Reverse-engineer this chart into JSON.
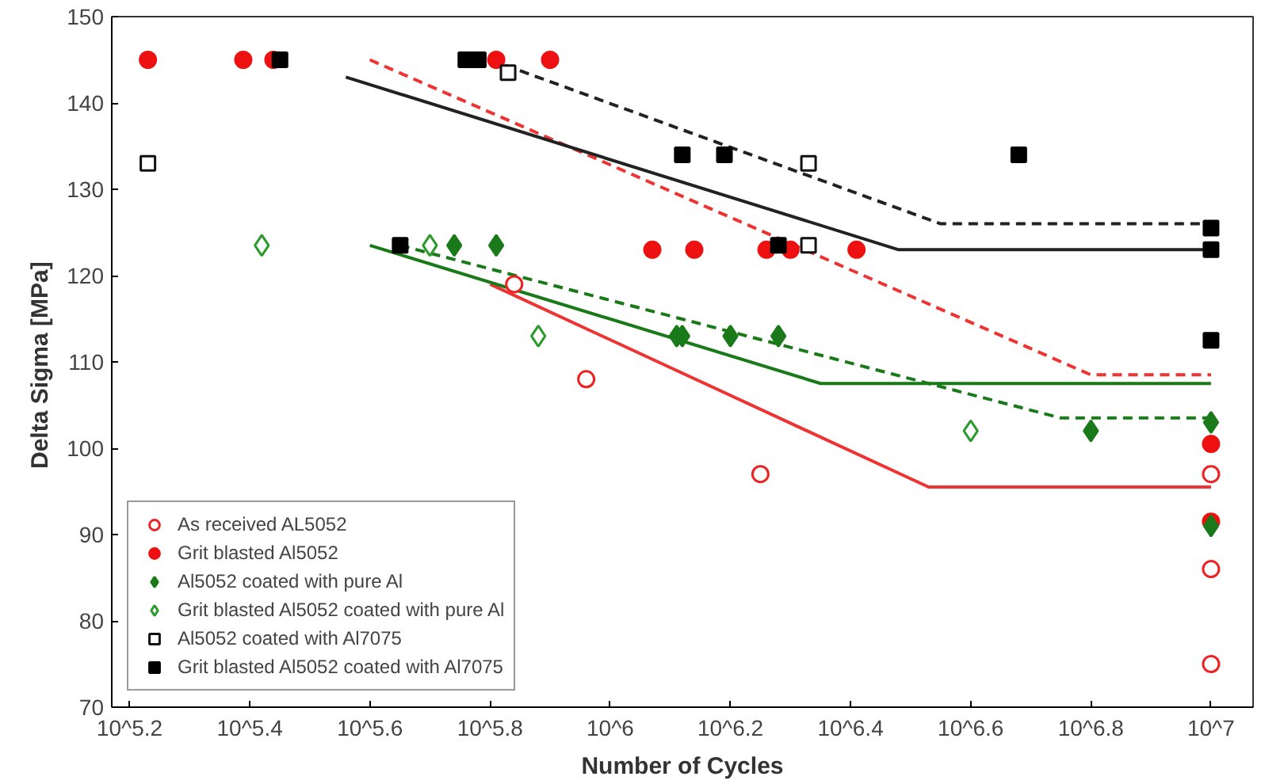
{
  "chart_data": {
    "type": "scatter",
    "xlabel": "Number of Cycles",
    "ylabel": "Delta Sigma  [MPa]",
    "log": "x",
    "xlim": [
      148000,
      11750000
    ],
    "ylim": [
      70,
      150
    ],
    "xticks": [
      {
        "value": 158489,
        "label": "10^5.2"
      },
      {
        "value": 251189,
        "label": "10^5.4"
      },
      {
        "value": 398107,
        "label": "10^5.6"
      },
      {
        "value": 630957,
        "label": "10^5.8"
      },
      {
        "value": 1000000,
        "label": "10^6"
      },
      {
        "value": 1584893,
        "label": "10^6.2"
      },
      {
        "value": 2511886,
        "label": "10^6.4"
      },
      {
        "value": 3981072,
        "label": "10^6.6"
      },
      {
        "value": 6309573,
        "label": "10^6.8"
      },
      {
        "value": 10000000,
        "label": "10^7"
      }
    ],
    "yticks": [
      70,
      80,
      90,
      100,
      110,
      120,
      130,
      140,
      150
    ],
    "grid": false,
    "legend": "bottom left",
    "series": [
      {
        "name": "As received AL5052",
        "color": "#ee2222",
        "marker": "circle_open",
        "x": [
          692000,
          912000,
          1778000,
          10000000,
          10000000,
          10000000
        ],
        "values": [
          119,
          108,
          97,
          97,
          86,
          75
        ]
      },
      {
        "name": "Grit blasted Al5052",
        "color": "#ee1111",
        "marker": "circle",
        "x": [
          170000,
          245000,
          275000,
          646000,
          794000,
          1175000,
          1380000,
          1820000,
          1995000,
          2570000,
          10000000,
          10000000
        ],
        "values": [
          145,
          145,
          145,
          145,
          145,
          123,
          123,
          123,
          123,
          123,
          100.5,
          91.5
        ]
      },
      {
        "name": "Al5052 coated with pure Al",
        "color": "#1a7a1a",
        "marker": "diamond",
        "x": [
          550000,
          646000,
          1290000,
          1318000,
          1585000,
          1905000,
          6310000,
          10000000,
          10000000
        ],
        "values": [
          123.5,
          123.5,
          113,
          113,
          113,
          113,
          102,
          103,
          91
        ]
      },
      {
        "name": "Grit blasted Al5052 coated with pure Al",
        "color": "#2a9a2a",
        "marker": "diamond_open",
        "x": [
          263000,
          501000,
          759000,
          3981000
        ],
        "values": [
          123.5,
          123.5,
          113,
          102
        ]
      },
      {
        "name": "Al5052 coated with Al7075",
        "color": "#111111",
        "marker": "square_open",
        "x": [
          170000,
          676000,
          2138000,
          2138000
        ],
        "values": [
          133,
          143.5,
          133,
          123.5
        ]
      },
      {
        "name": "Grit blasted Al5052 coated with Al7075",
        "color": "#000000",
        "marker": "square",
        "x": [
          282000,
          575000,
          603000,
          447000,
          1318000,
          1549000,
          1905000,
          4786000,
          10000000,
          10000000,
          10000000
        ],
        "values": [
          145,
          145,
          145,
          123.5,
          134,
          134,
          123.5,
          134,
          125.5,
          123,
          112.5
        ]
      },
      {
        "type": "line",
        "color": "#ee3333",
        "line_style": "solid",
        "x": [
          631000,
          3388000,
          10000000
        ],
        "values": [
          119,
          95.5,
          95.5
        ]
      },
      {
        "type": "line",
        "color": "#ee3333",
        "line_style": "dashed",
        "x": [
          398000,
          6310000,
          10000000
        ],
        "values": [
          145,
          108.5,
          108.5
        ]
      },
      {
        "type": "line",
        "color": "#222222",
        "line_style": "solid",
        "x": [
          363000,
          3020000,
          10000000
        ],
        "values": [
          143,
          123,
          123
        ]
      },
      {
        "type": "line",
        "color": "#222222",
        "line_style": "dashed",
        "x": [
          631000,
          3548000,
          10000000
        ],
        "values": [
          145,
          126,
          126
        ]
      },
      {
        "type": "line",
        "color": "#1a7a1a",
        "line_style": "solid",
        "x": [
          398000,
          2239000,
          10000000
        ],
        "values": [
          123.5,
          107.5,
          107.5
        ]
      },
      {
        "type": "line",
        "color": "#1a7a1a",
        "line_style": "dashed",
        "x": [
          447000,
          5623000,
          10000000
        ],
        "values": [
          123.5,
          103.5,
          103.5
        ]
      }
    ]
  }
}
